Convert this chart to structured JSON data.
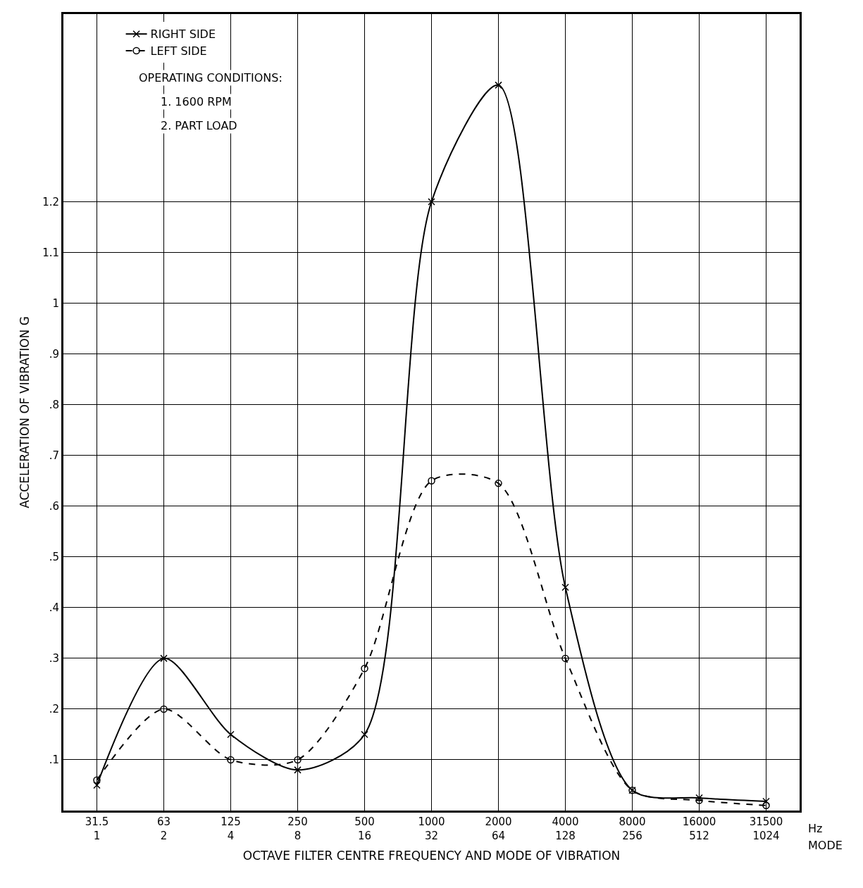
{
  "chart_data": {
    "type": "line",
    "xlabel": "OCTAVE FILTER CENTRE FREQUENCY AND MODE OF VIBRATION",
    "ylabel": "ACCELERATION OF VIBRATION G",
    "categories": [
      "31.5\n1",
      "63\n2",
      "125\n4",
      "250\n8",
      "500\n16",
      "1000\n32",
      "2000\n64",
      "4000\n128",
      "8000\n256",
      "16000\n512",
      "31500\n1024"
    ],
    "series": [
      {
        "name": "RIGHT SIDE",
        "color": "#000000",
        "marker": "cross",
        "line_style": "solid",
        "values": [
          0.05,
          0.3,
          0.15,
          0.08,
          0.15,
          1.2,
          1.43,
          0.44,
          0.04,
          0.025,
          0.018
        ]
      },
      {
        "name": "LEFT SIDE",
        "color": "#000000",
        "marker": "circle",
        "line_style": "dashed",
        "values": [
          0.06,
          0.2,
          0.1,
          0.1,
          0.28,
          0.65,
          0.645,
          0.3,
          0.04,
          0.02,
          0.01
        ]
      }
    ],
    "ylim": [
      0,
      1.57
    ],
    "yticks": [
      {
        "value": 0.1,
        "label": ".1"
      },
      {
        "value": 0.2,
        "label": ".2"
      },
      {
        "value": 0.3,
        "label": ".3"
      },
      {
        "value": 0.4,
        "label": ".4"
      },
      {
        "value": 0.5,
        "label": ".5"
      },
      {
        "value": 0.6,
        "label": ".6"
      },
      {
        "value": 0.7,
        "label": ".7"
      },
      {
        "value": 0.8,
        "label": ".8"
      },
      {
        "value": 0.9,
        "label": ".9"
      },
      1,
      1.1,
      1.2
    ],
    "grid": true,
    "legend": "top left",
    "annotations": [
      "OPERATING CONDITIONS:",
      "1. 1600 RPM",
      "2. PART LOAD",
      "Hz",
      "MODE"
    ]
  }
}
